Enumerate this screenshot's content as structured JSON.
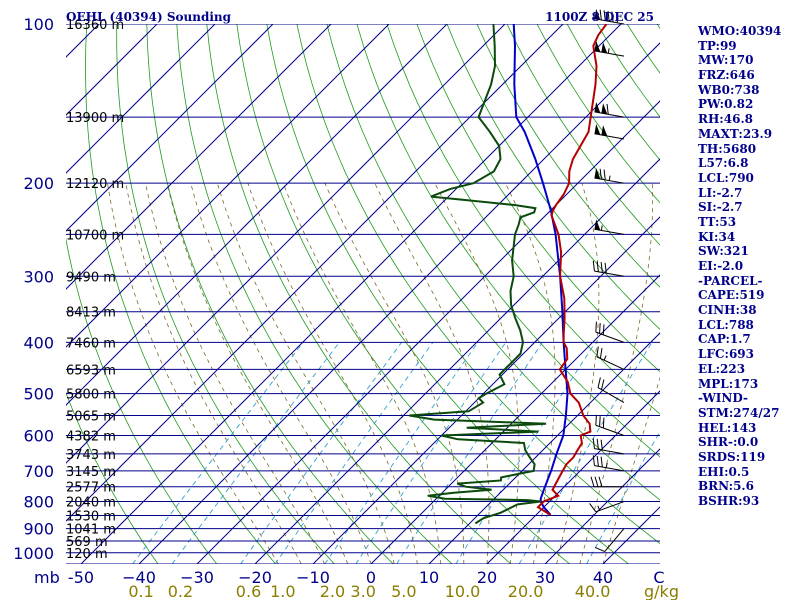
{
  "header": {
    "station": "OEHL (40394) Sounding",
    "time": "1100Z  8 DEC 25"
  },
  "chart_data": {
    "type": "skewt",
    "pressure_levels": [
      100,
      200,
      300,
      400,
      500,
      600,
      700,
      800,
      900,
      1000
    ],
    "pressure_label_units": "mb",
    "temperature_ticks": [
      -50,
      -40,
      -30,
      -20,
      -10,
      0,
      10,
      20,
      30,
      40
    ],
    "temperature_tick_labels": [
      "-50",
      "−40",
      "−30",
      "−20",
      "−10",
      "0",
      "10",
      "20",
      "30",
      "40"
    ],
    "temperature_extra_label": "C",
    "mixing_ratio_ticks": [
      {
        "label": "0.1",
        "w": 0.1
      },
      {
        "label": "0.2",
        "w": 0.2
      },
      {
        "label": "0.6",
        "w": 0.6
      },
      {
        "label": "1.0",
        "w": 1.0
      },
      {
        "label": "2.0",
        "w": 2.0
      },
      {
        "label": "3.0",
        "w": 3.0
      },
      {
        "label": "5.0",
        "w": 5.0
      },
      {
        "label": "10.0",
        "w": 10.0
      },
      {
        "label": "20.0",
        "w": 20.0
      },
      {
        "label": "40.0",
        "w": 40.0
      }
    ],
    "mixing_ratio_units": "g/kg",
    "heights": [
      {
        "label": "16360 m",
        "p": 100
      },
      {
        "label": "13900 m",
        "p": 150
      },
      {
        "label": "12120 m",
        "p": 200
      },
      {
        "label": "10700 m",
        "p": 250
      },
      {
        "label": "9490 m",
        "p": 300
      },
      {
        "label": "8413 m",
        "p": 350
      },
      {
        "label": "7460 m",
        "p": 400
      },
      {
        "label": "6593 m",
        "p": 450
      },
      {
        "label": "5800 m",
        "p": 500
      },
      {
        "label": "5065 m",
        "p": 550
      },
      {
        "label": "4382 m",
        "p": 600
      },
      {
        "label": "3743 m",
        "p": 650
      },
      {
        "label": "3145 m",
        "p": 700
      },
      {
        "label": "2577 m",
        "p": 750
      },
      {
        "label": "2040 m",
        "p": 800
      },
      {
        "label": "1530 m",
        "p": 850
      },
      {
        "label": "1041 m",
        "p": 900
      },
      {
        "label": "569 m",
        "p": 950
      },
      {
        "label": "120 m",
        "p": 1000
      }
    ],
    "temperature": [
      [
        848,
        22.5
      ],
      [
        820,
        19.0
      ],
      [
        800,
        19.0
      ],
      [
        780,
        20.5
      ],
      [
        760,
        18.5
      ],
      [
        740,
        18.0
      ],
      [
        720,
        17.5
      ],
      [
        700,
        17.0
      ],
      [
        680,
        16.5
      ],
      [
        660,
        16.5
      ],
      [
        640,
        16.0
      ],
      [
        620,
        15.5
      ],
      [
        600,
        14.0
      ],
      [
        590,
        15.0
      ],
      [
        570,
        13.5
      ],
      [
        550,
        11.0
      ],
      [
        520,
        8.0
      ],
      [
        500,
        5.0
      ],
      [
        475,
        2.5
      ],
      [
        450,
        -1.0
      ],
      [
        430,
        -1.5
      ],
      [
        410,
        -3.5
      ],
      [
        400,
        -5.0
      ],
      [
        385,
        -6.5
      ],
      [
        360,
        -9.0
      ],
      [
        330,
        -12.5
      ],
      [
        300,
        -17.0
      ],
      [
        270,
        -21.0
      ],
      [
        250,
        -24.5
      ],
      [
        230,
        -29.0
      ],
      [
        226,
        -29.5
      ],
      [
        220,
        -30.0
      ],
      [
        210,
        -30.5
      ],
      [
        200,
        -31.5
      ],
      [
        190,
        -33.5
      ],
      [
        180,
        -35.0
      ],
      [
        160,
        -37.0
      ],
      [
        140,
        -41.5
      ],
      [
        130,
        -44.0
      ],
      [
        120,
        -47.0
      ],
      [
        110,
        -51.0
      ],
      [
        105,
        -52.0
      ],
      [
        100,
        -52.5
      ]
    ],
    "dewpoint": [
      [
        880,
        11.0
      ],
      [
        860,
        11.5
      ],
      [
        840,
        13.5
      ],
      [
        810,
        15.0
      ],
      [
        800,
        18.5
      ],
      [
        795,
        16.0
      ],
      [
        790,
        1.5
      ],
      [
        780,
        -2.0
      ],
      [
        770,
        2.0
      ],
      [
        760,
        8.0
      ],
      [
        750,
        3.0
      ],
      [
        740,
        1.0
      ],
      [
        730,
        8.0
      ],
      [
        720,
        7.5
      ],
      [
        700,
        12.0
      ],
      [
        680,
        11.0
      ],
      [
        660,
        9.0
      ],
      [
        640,
        7.0
      ],
      [
        620,
        5.5
      ],
      [
        610,
        -6.5
      ],
      [
        600,
        -10.0
      ],
      [
        590,
        6.0
      ],
      [
        580,
        -7.0
      ],
      [
        570,
        6.0
      ],
      [
        560,
        -14.0
      ],
      [
        550,
        -19.0
      ],
      [
        540,
        -9.5
      ],
      [
        520,
        -8.5
      ],
      [
        510,
        -10.0
      ],
      [
        500,
        -9.5
      ],
      [
        480,
        -8.0
      ],
      [
        460,
        -10.5
      ],
      [
        440,
        -10.5
      ],
      [
        420,
        -10.5
      ],
      [
        400,
        -12.0
      ],
      [
        380,
        -14.5
      ],
      [
        360,
        -17.5
      ],
      [
        340,
        -20.5
      ],
      [
        320,
        -23.0
      ],
      [
        300,
        -25.0
      ],
      [
        280,
        -28.0
      ],
      [
        250,
        -32.0
      ],
      [
        240,
        -33.0
      ],
      [
        232,
        -34.0
      ],
      [
        227,
        -32.5
      ],
      [
        223,
        -33.0
      ],
      [
        220,
        -37.0
      ],
      [
        215,
        -47.0
      ],
      [
        212,
        -53.0
      ],
      [
        205,
        -51.0
      ],
      [
        200,
        -48.0
      ],
      [
        190,
        -46.5
      ],
      [
        180,
        -47.5
      ],
      [
        170,
        -50.0
      ],
      [
        160,
        -54.0
      ],
      [
        150,
        -58.5
      ],
      [
        130,
        -62.0
      ],
      [
        120,
        -64.5
      ],
      [
        110,
        -68.0
      ],
      [
        100,
        -72.0
      ]
    ],
    "parcel": [
      [
        848,
        22.5
      ],
      [
        820,
        20.0
      ],
      [
        800,
        18.5
      ],
      [
        790,
        18.0
      ],
      [
        760,
        17.0
      ],
      [
        700,
        15.0
      ],
      [
        650,
        13.0
      ],
      [
        600,
        11.0
      ],
      [
        550,
        8.0
      ],
      [
        500,
        4.5
      ],
      [
        450,
        0.0
      ],
      [
        400,
        -5.0
      ],
      [
        350,
        -10.5
      ],
      [
        300,
        -17.0
      ],
      [
        250,
        -25.0
      ],
      [
        225,
        -30.0
      ],
      [
        200,
        -36.0
      ],
      [
        180,
        -41.5
      ],
      [
        160,
        -48.0
      ],
      [
        150,
        -52.0
      ],
      [
        130,
        -58.0
      ],
      [
        110,
        -64.5
      ],
      [
        100,
        -68.5
      ]
    ],
    "wind_barbs": [
      {
        "p": 100,
        "dir": 280,
        "spd": 95
      },
      {
        "p": 115,
        "dir": 280,
        "spd": 105
      },
      {
        "p": 150,
        "dir": 280,
        "spd": 110
      },
      {
        "p": 165,
        "dir": 280,
        "spd": 100
      },
      {
        "p": 200,
        "dir": 280,
        "spd": 75
      },
      {
        "p": 250,
        "dir": 280,
        "spd": 55
      },
      {
        "p": 300,
        "dir": 280,
        "spd": 40
      },
      {
        "p": 400,
        "dir": 290,
        "spd": 30
      },
      {
        "p": 450,
        "dir": 295,
        "spd": 25
      },
      {
        "p": 520,
        "dir": 300,
        "spd": 20
      },
      {
        "p": 600,
        "dir": 290,
        "spd": 30
      },
      {
        "p": 650,
        "dir": 280,
        "spd": 30
      },
      {
        "p": 700,
        "dir": 280,
        "spd": 35
      },
      {
        "p": 750,
        "dir": 270,
        "spd": 30
      },
      {
        "p": 800,
        "dir": 250,
        "spd": 15
      },
      {
        "p": 900,
        "dir": 220,
        "spd": 10
      }
    ]
  },
  "indices": [
    "WMO:40394",
    "TP:99",
    "MW:170",
    "FRZ:646",
    "WB0:738",
    "PW:0.82",
    "RH:46.8",
    "MAXT:23.9",
    "TH:5680",
    "L57:6.8",
    "LCL:790",
    "LI:-2.7",
    "SI:-2.7",
    "TT:53",
    "KI:34",
    "SW:321",
    "EI:-2.0",
    "-PARCEL-",
    "CAPE:519",
    "CINH:38",
    "LCL:788",
    "CAP:1.7",
    "LFC:693",
    "EL:223",
    "MPL:173",
    "-WIND-",
    "STM:274/27",
    "HEL:143",
    "SHR-:0.0",
    "SRDS:119",
    "EHI:0.5",
    "BRN:5.6",
    "BSHR:93"
  ]
}
